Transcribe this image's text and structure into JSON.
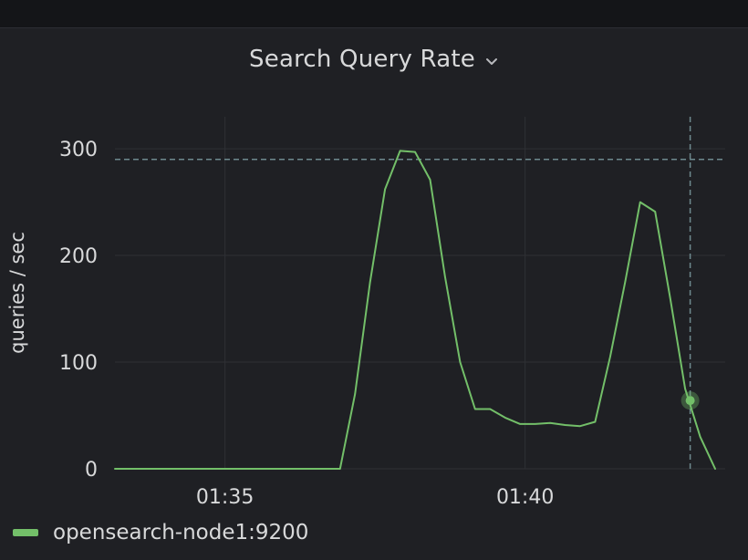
{
  "panel": {
    "title": "Search Query Rate"
  },
  "colors": {
    "series": "#73bf69",
    "grid": "#2f3035",
    "threshold": "#6e8a8f",
    "text": "#d8d9da"
  },
  "icons": {
    "title_menu": "chevron-down-icon"
  },
  "chart_data": {
    "type": "line",
    "ylabel": "queries / sec",
    "xlabel": "",
    "title": "Search Query Rate",
    "yticks": [
      0,
      100,
      200,
      300
    ],
    "xticks": [
      "01:35",
      "01:40"
    ],
    "ylim": [
      0,
      330
    ],
    "xlim": [
      "01:33:10",
      "01:43:20"
    ],
    "grid": true,
    "legend_position": "bottom-left",
    "threshold_value": 290,
    "cursor_time": "01:42:45",
    "series": [
      {
        "name": "opensearch-node1:9200",
        "x": [
          "01:33:10",
          "01:33:30",
          "01:34:00",
          "01:34:30",
          "01:35:00",
          "01:35:30",
          "01:36:00",
          "01:36:30",
          "01:36:55",
          "01:37:10",
          "01:37:25",
          "01:37:40",
          "01:37:55",
          "01:38:10",
          "01:38:25",
          "01:38:40",
          "01:38:55",
          "01:39:10",
          "01:39:25",
          "01:39:40",
          "01:39:55",
          "01:40:10",
          "01:40:25",
          "01:40:40",
          "01:40:55",
          "01:41:10",
          "01:41:25",
          "01:41:40",
          "01:41:55",
          "01:42:10",
          "01:42:25",
          "01:42:40",
          "01:42:55",
          "01:43:10"
        ],
        "values": [
          0,
          0,
          0,
          0,
          0,
          0,
          0,
          0,
          0,
          70,
          175,
          262,
          298,
          297,
          271,
          180,
          100,
          56,
          56,
          48,
          42,
          42,
          43,
          41,
          40,
          44,
          105,
          175,
          250,
          241,
          160,
          75,
          30,
          0
        ]
      }
    ],
    "highlight_point": {
      "x": "01:42:45",
      "y": 64
    }
  }
}
